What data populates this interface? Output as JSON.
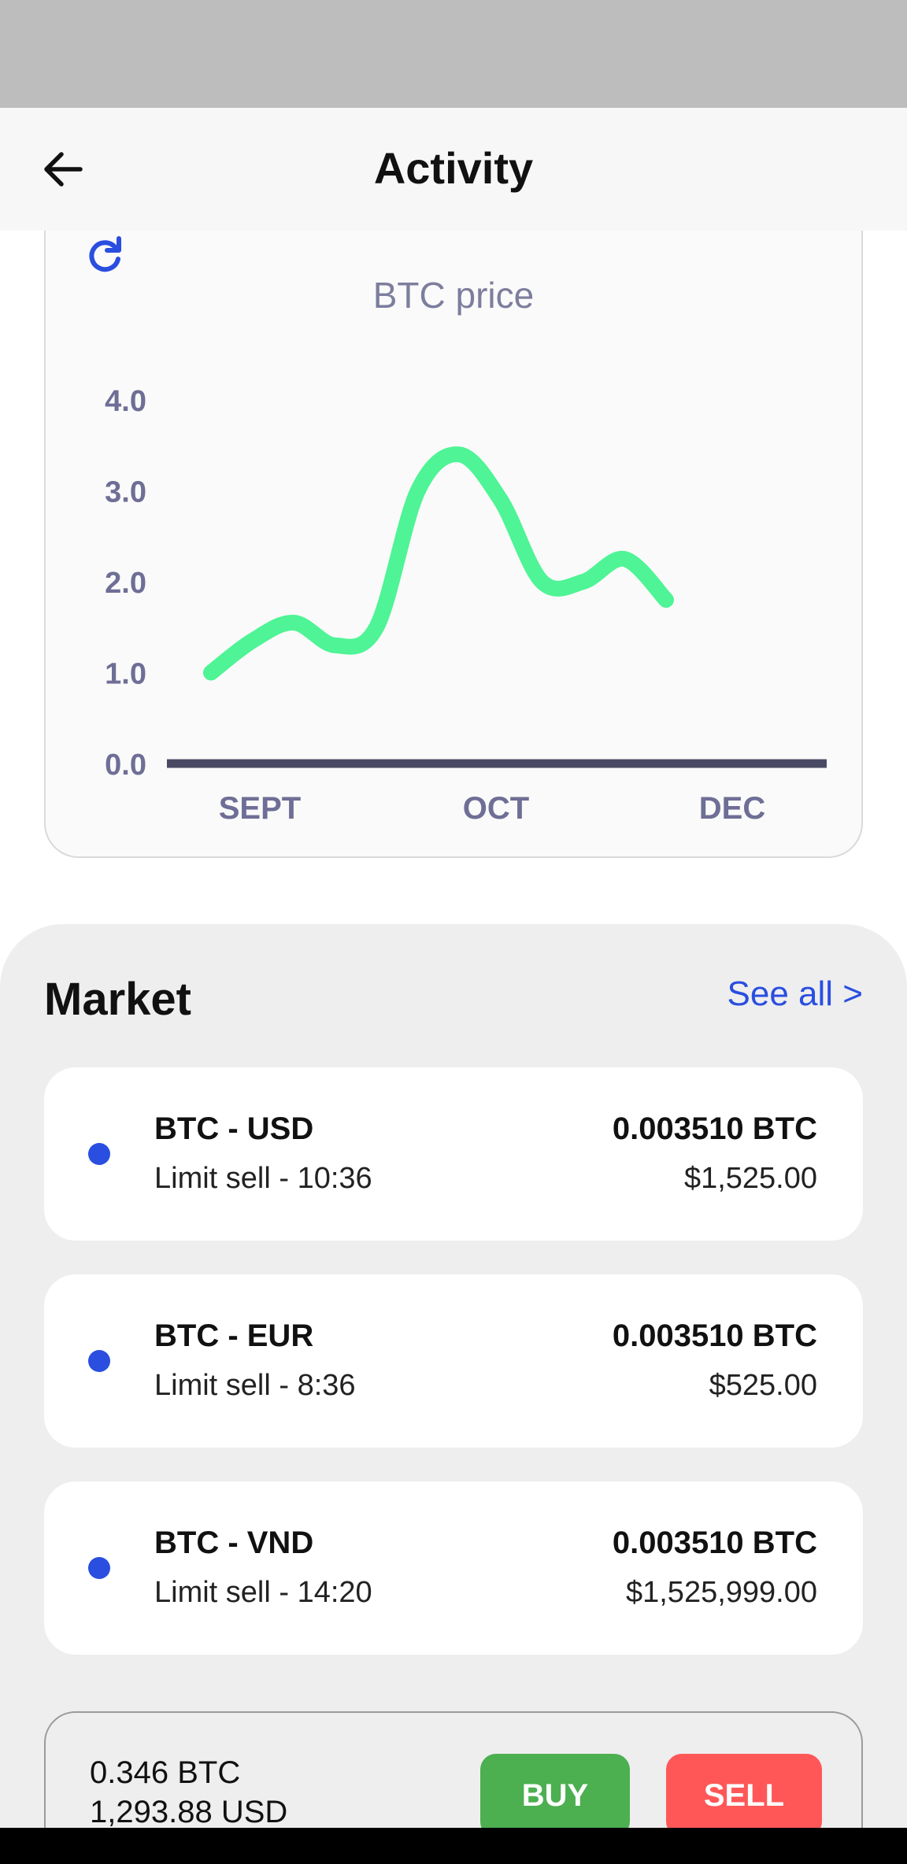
{
  "header": {
    "title": "Activity",
    "back_icon": "arrow-left-icon"
  },
  "chart_card": {
    "refresh_icon": "refresh-icon",
    "title": "BTC price"
  },
  "chart_data": {
    "type": "line",
    "title": "BTC price",
    "x_tick_labels": [
      "SEPT",
      "OCT",
      "DEC"
    ],
    "y_tick_labels": [
      "4.0",
      "3.0",
      "2.0",
      "1.0",
      "0.0"
    ],
    "ylim": [
      0,
      4
    ],
    "series": [
      {
        "values": [
          1.0,
          1.35,
          1.55,
          1.3,
          1.5,
          3.0,
          3.4,
          2.9,
          2.0,
          2.0,
          2.25,
          1.8
        ]
      }
    ],
    "colors": {
      "line": "#4ef495",
      "axis": "#4a4a64",
      "labels": "#6e6e96"
    }
  },
  "market": {
    "title": "Market",
    "see_all": "See all >",
    "items": [
      {
        "pair": "BTC - USD",
        "sub": "Limit sell - 10:36",
        "amount": "0.003510 BTC",
        "price": "$1,525.00"
      },
      {
        "pair": "BTC - EUR",
        "sub": "Limit sell - 8:36",
        "amount": "0.003510 BTC",
        "price": "$525.00"
      },
      {
        "pair": "BTC - VND",
        "sub": "Limit sell - 14:20",
        "amount": "0.003510 BTC",
        "price": "$1,525,999.00"
      }
    ]
  },
  "trade": {
    "balance_btc": "0.346 BTC",
    "balance_usd": "1,293.88 USD",
    "buy_label": "BUY",
    "sell_label": "SELL"
  },
  "colors": {
    "accent": "#2a4ee0",
    "buy": "#4caf50",
    "sell": "#ff5757"
  }
}
